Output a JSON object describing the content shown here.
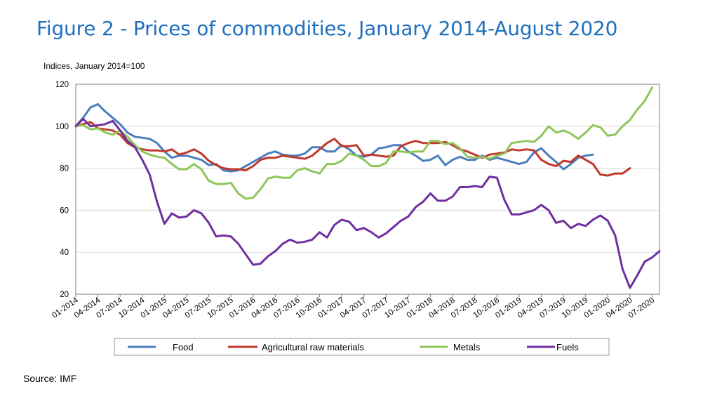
{
  "title": "Figure 2 - Prices of commodities, January 2014-August 2020",
  "source": "Source: IMF",
  "chart_data": {
    "type": "line",
    "ylabel": "Indices, January 2014=100",
    "ylim": [
      20,
      120
    ],
    "yticks": [
      20,
      40,
      60,
      80,
      100,
      120
    ],
    "grid": true,
    "legend_position": "bottom",
    "x_tick_labels": [
      "01-2014",
      "04-2014",
      "07-2014",
      "10-2014",
      "01-2015",
      "04-2015",
      "07-2015",
      "10-2015",
      "01-2016",
      "04-2016",
      "07-2016",
      "10-2016",
      "01-2017",
      "04-2017",
      "07-2017",
      "10-2017",
      "01-2018",
      "04-2018",
      "07-2018",
      "10-2018",
      "01-2019",
      "04-2019",
      "07-2019",
      "10-2019",
      "01-2020",
      "04-2020",
      "07-2020"
    ],
    "series": [
      {
        "name": "Food",
        "color": "#4a7ebf",
        "points": [
          [
            0,
            100
          ],
          [
            1,
            104
          ],
          [
            2,
            109
          ],
          [
            3,
            110.5
          ],
          [
            4,
            107
          ],
          [
            5,
            104
          ],
          [
            6,
            101
          ],
          [
            7,
            97
          ],
          [
            8,
            95
          ],
          [
            9,
            94.5
          ],
          [
            10,
            94
          ],
          [
            11,
            92
          ],
          [
            12,
            88
          ],
          [
            13,
            85
          ],
          [
            14,
            86
          ],
          [
            15,
            86
          ],
          [
            16,
            85
          ],
          [
            17,
            84
          ],
          [
            18,
            81.5
          ],
          [
            19,
            82
          ],
          [
            20,
            79
          ],
          [
            21,
            78.5
          ],
          [
            22,
            79
          ],
          [
            23,
            81
          ],
          [
            24,
            83
          ],
          [
            25,
            85
          ],
          [
            26,
            87
          ],
          [
            27,
            88
          ],
          [
            28,
            86.5
          ],
          [
            29,
            86
          ],
          [
            30,
            86
          ],
          [
            31,
            87
          ],
          [
            32,
            90
          ],
          [
            33,
            90
          ],
          [
            34,
            88
          ],
          [
            35,
            88
          ],
          [
            36,
            91
          ],
          [
            37,
            89
          ],
          [
            38,
            86
          ],
          [
            39,
            85.5
          ],
          [
            40,
            86.5
          ],
          [
            41,
            89.5
          ],
          [
            42,
            90
          ],
          [
            43,
            91
          ],
          [
            44,
            91
          ],
          [
            45,
            88
          ],
          [
            46,
            86
          ],
          [
            47,
            83.5
          ],
          [
            48,
            84
          ],
          [
            49,
            86
          ],
          [
            50,
            81.5
          ],
          [
            51,
            84
          ],
          [
            52,
            85.5
          ],
          [
            53,
            84
          ],
          [
            54,
            84
          ],
          [
            55,
            86
          ],
          [
            56,
            84
          ],
          [
            57,
            85
          ],
          [
            58,
            84
          ],
          [
            59,
            83
          ],
          [
            60,
            82
          ],
          [
            61,
            83
          ],
          [
            62,
            87.5
          ],
          [
            63,
            89.5
          ],
          [
            64,
            86
          ],
          [
            65,
            83
          ],
          [
            66,
            79.5
          ],
          [
            67,
            82
          ],
          [
            68,
            85
          ],
          [
            69,
            86
          ],
          [
            70,
            86.5
          ]
        ]
      },
      {
        "name": "Agricultural raw materials",
        "color": "#c0392b",
        "points": [
          [
            0,
            100
          ],
          [
            1,
            101
          ],
          [
            2,
            102
          ],
          [
            3,
            99
          ],
          [
            4,
            98.5
          ],
          [
            5,
            98
          ],
          [
            6,
            96
          ],
          [
            7,
            92
          ],
          [
            8,
            90
          ],
          [
            9,
            89
          ],
          [
            10,
            88.5
          ],
          [
            11,
            88.5
          ],
          [
            12,
            88
          ],
          [
            13,
            89
          ],
          [
            14,
            86.5
          ],
          [
            15,
            87.5
          ],
          [
            16,
            89
          ],
          [
            17,
            87
          ],
          [
            18,
            83.5
          ],
          [
            19,
            81.5
          ],
          [
            20,
            80
          ],
          [
            21,
            79.5
          ],
          [
            22,
            79.5
          ],
          [
            23,
            79
          ],
          [
            24,
            81
          ],
          [
            25,
            84
          ],
          [
            26,
            85
          ],
          [
            27,
            85
          ],
          [
            28,
            86
          ],
          [
            29,
            85.5
          ],
          [
            30,
            85
          ],
          [
            31,
            84.5
          ],
          [
            32,
            86
          ],
          [
            33,
            89
          ],
          [
            34,
            92
          ],
          [
            35,
            94
          ],
          [
            36,
            90.5
          ],
          [
            37,
            90.5
          ],
          [
            38,
            91
          ],
          [
            39,
            86
          ],
          [
            40,
            86.5
          ],
          [
            41,
            86
          ],
          [
            42,
            85.5
          ],
          [
            43,
            86
          ],
          [
            44,
            90.5
          ],
          [
            45,
            92
          ],
          [
            46,
            93
          ],
          [
            47,
            92
          ],
          [
            48,
            92
          ],
          [
            49,
            92
          ],
          [
            50,
            92.5
          ],
          [
            51,
            91
          ],
          [
            52,
            89
          ],
          [
            53,
            88
          ],
          [
            54,
            86.5
          ],
          [
            55,
            85
          ],
          [
            56,
            86.5
          ],
          [
            57,
            87
          ],
          [
            58,
            87.5
          ],
          [
            59,
            89
          ],
          [
            60,
            88.5
          ],
          [
            61,
            89
          ],
          [
            62,
            88.5
          ],
          [
            63,
            84
          ],
          [
            64,
            82
          ],
          [
            65,
            81
          ],
          [
            66,
            83.5
          ],
          [
            67,
            83
          ],
          [
            68,
            86
          ],
          [
            69,
            84
          ],
          [
            70,
            82
          ],
          [
            71,
            77
          ],
          [
            72,
            76.5
          ],
          [
            73,
            77.5
          ],
          [
            74,
            77.5
          ],
          [
            75,
            80
          ]
        ]
      },
      {
        "name": "Metals",
        "color": "#8fc65a",
        "points": [
          [
            0,
            100
          ],
          [
            1,
            100.5
          ],
          [
            2,
            98.5
          ],
          [
            3,
            99
          ],
          [
            4,
            97
          ],
          [
            5,
            96
          ],
          [
            6,
            98
          ],
          [
            7,
            95
          ],
          [
            8,
            91
          ],
          [
            9,
            88
          ],
          [
            10,
            86.5
          ],
          [
            11,
            85.5
          ],
          [
            12,
            85
          ],
          [
            13,
            82
          ],
          [
            14,
            79.5
          ],
          [
            15,
            79.5
          ],
          [
            16,
            82
          ],
          [
            17,
            79.5
          ],
          [
            18,
            74
          ],
          [
            19,
            72.5
          ],
          [
            20,
            72.5
          ],
          [
            21,
            73
          ],
          [
            22,
            68
          ],
          [
            23,
            65.5
          ],
          [
            24,
            66
          ],
          [
            25,
            70
          ],
          [
            26,
            75
          ],
          [
            27,
            76
          ],
          [
            28,
            75.5
          ],
          [
            29,
            75.5
          ],
          [
            30,
            79
          ],
          [
            31,
            80
          ],
          [
            32,
            78.5
          ],
          [
            33,
            77.5
          ],
          [
            34,
            82
          ],
          [
            35,
            82
          ],
          [
            36,
            83.5
          ],
          [
            37,
            87
          ],
          [
            38,
            86
          ],
          [
            39,
            84
          ],
          [
            40,
            81
          ],
          [
            41,
            81
          ],
          [
            42,
            82.5
          ],
          [
            43,
            88
          ],
          [
            44,
            88
          ],
          [
            45,
            87.5
          ],
          [
            46,
            88
          ],
          [
            47,
            88
          ],
          [
            48,
            93
          ],
          [
            49,
            93
          ],
          [
            50,
            91.5
          ],
          [
            51,
            92
          ],
          [
            52,
            89.5
          ],
          [
            53,
            85.5
          ],
          [
            54,
            85
          ],
          [
            55,
            85.5
          ],
          [
            56,
            84.5
          ],
          [
            57,
            86
          ],
          [
            58,
            87
          ],
          [
            59,
            92
          ],
          [
            60,
            92.5
          ],
          [
            61,
            93
          ],
          [
            62,
            92.5
          ],
          [
            63,
            95.5
          ],
          [
            64,
            100
          ],
          [
            65,
            97
          ],
          [
            66,
            98
          ],
          [
            67,
            96.5
          ],
          [
            68,
            94
          ],
          [
            69,
            97
          ],
          [
            70,
            100.5
          ],
          [
            71,
            99.5
          ],
          [
            72,
            95.5
          ],
          [
            73,
            96
          ],
          [
            74,
            100
          ],
          [
            75,
            103
          ],
          [
            76,
            108
          ],
          [
            77,
            112
          ],
          [
            78,
            118.5
          ]
        ]
      },
      {
        "name": "Fuels",
        "color": "#7030a0",
        "points": [
          [
            0,
            100
          ],
          [
            1,
            103.5
          ],
          [
            2,
            100
          ],
          [
            3,
            100.5
          ],
          [
            4,
            101
          ],
          [
            5,
            102.5
          ],
          [
            6,
            98
          ],
          [
            7,
            93
          ],
          [
            8,
            90
          ],
          [
            9,
            84
          ],
          [
            10,
            77
          ],
          [
            11,
            64
          ],
          [
            12,
            53.5
          ],
          [
            13,
            58.5
          ],
          [
            14,
            56.5
          ],
          [
            15,
            57
          ],
          [
            16,
            60
          ],
          [
            17,
            58.5
          ],
          [
            18,
            54
          ],
          [
            19,
            47.5
          ],
          [
            20,
            48
          ],
          [
            21,
            47.5
          ],
          [
            22,
            44
          ],
          [
            23,
            39
          ],
          [
            24,
            34
          ],
          [
            25,
            34.5
          ],
          [
            26,
            38
          ],
          [
            27,
            40.5
          ],
          [
            28,
            44
          ],
          [
            29,
            46
          ],
          [
            30,
            44.5
          ],
          [
            31,
            45
          ],
          [
            32,
            46
          ],
          [
            33,
            49.5
          ],
          [
            34,
            47
          ],
          [
            35,
            53
          ],
          [
            36,
            55.5
          ],
          [
            37,
            54.5
          ],
          [
            38,
            50.5
          ],
          [
            39,
            51.5
          ],
          [
            40,
            49.5
          ],
          [
            41,
            47
          ],
          [
            42,
            49
          ],
          [
            43,
            52
          ],
          [
            44,
            55
          ],
          [
            45,
            57
          ],
          [
            46,
            61.5
          ],
          [
            47,
            64
          ],
          [
            48,
            68
          ],
          [
            49,
            64.5
          ],
          [
            50,
            64.5
          ],
          [
            51,
            66.5
          ],
          [
            52,
            71
          ],
          [
            53,
            71
          ],
          [
            54,
            71.5
          ],
          [
            55,
            71
          ],
          [
            56,
            76
          ],
          [
            57,
            75.5
          ],
          [
            58,
            65
          ],
          [
            59,
            58
          ],
          [
            60,
            58
          ],
          [
            61,
            59
          ],
          [
            62,
            60
          ],
          [
            63,
            62.5
          ],
          [
            64,
            60
          ],
          [
            65,
            54
          ],
          [
            66,
            55
          ],
          [
            67,
            51.5
          ],
          [
            68,
            53.5
          ],
          [
            69,
            52.5
          ],
          [
            70,
            55.5
          ],
          [
            71,
            57.5
          ],
          [
            72,
            55
          ],
          [
            73,
            48
          ],
          [
            74,
            32
          ],
          [
            75,
            23
          ],
          [
            76,
            29
          ],
          [
            77,
            35.5
          ],
          [
            78,
            37.5
          ],
          [
            79,
            40.5
          ]
        ]
      }
    ]
  }
}
